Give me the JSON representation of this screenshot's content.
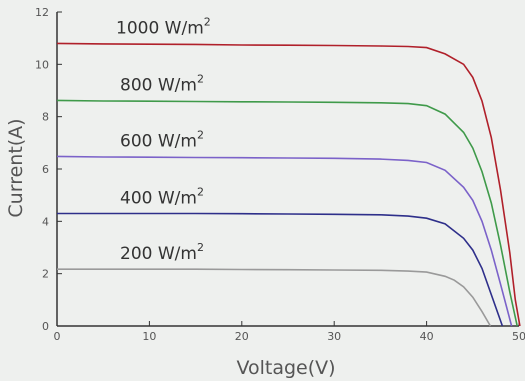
{
  "chart_data": {
    "type": "line",
    "xlabel": "Voltage(V)",
    "ylabel": "Current(A)",
    "xlim": [
      0,
      50
    ],
    "ylim": [
      0,
      12
    ],
    "xticks": [
      "0",
      "10",
      "20",
      "30",
      "40",
      "50"
    ],
    "yticks": [
      "0",
      "2",
      "4",
      "6",
      "8",
      "10",
      "12"
    ],
    "grid": false,
    "legend": "inline labels above curves",
    "series": [
      {
        "name": "1000 W/m2",
        "label_text": "1000 W/m",
        "label_sup": "2",
        "color": "#b0202a",
        "x": [
          0,
          5,
          10,
          15,
          20,
          25,
          30,
          35,
          38,
          40,
          42,
          44,
          45,
          46,
          47,
          48,
          49,
          49.6,
          50.1
        ],
        "y": [
          10.8,
          10.78,
          10.77,
          10.76,
          10.74,
          10.73,
          10.72,
          10.7,
          10.68,
          10.64,
          10.4,
          10.0,
          9.5,
          8.6,
          7.2,
          5.2,
          2.8,
          1.0,
          0
        ]
      },
      {
        "name": "800 W/m2",
        "label_text": "800 W/m",
        "label_sup": "2",
        "color": "#3f9a4a",
        "x": [
          0,
          5,
          10,
          15,
          20,
          25,
          30,
          35,
          38,
          40,
          42,
          44,
          45,
          46,
          47,
          48,
          49,
          49.8
        ],
        "y": [
          8.62,
          8.6,
          8.59,
          8.58,
          8.57,
          8.56,
          8.55,
          8.53,
          8.5,
          8.42,
          8.1,
          7.4,
          6.8,
          5.9,
          4.7,
          3.1,
          1.3,
          0
        ]
      },
      {
        "name": "600 W/m2",
        "label_text": "600 W/m",
        "label_sup": "2",
        "color": "#7b62c9",
        "x": [
          0,
          5,
          10,
          15,
          20,
          25,
          30,
          35,
          38,
          40,
          42,
          44,
          45,
          46,
          47,
          48,
          49.2
        ],
        "y": [
          6.48,
          6.46,
          6.45,
          6.44,
          6.43,
          6.42,
          6.41,
          6.38,
          6.33,
          6.25,
          5.95,
          5.3,
          4.8,
          4.0,
          2.9,
          1.6,
          0
        ]
      },
      {
        "name": "400 W/m2",
        "label_text": "400 W/m",
        "label_sup": "2",
        "color": "#2e2f8a",
        "x": [
          0,
          5,
          10,
          15,
          20,
          25,
          30,
          35,
          38,
          40,
          42,
          44,
          45,
          46,
          47,
          48.2
        ],
        "y": [
          4.3,
          4.3,
          4.3,
          4.3,
          4.29,
          4.28,
          4.27,
          4.25,
          4.2,
          4.12,
          3.9,
          3.35,
          2.9,
          2.2,
          1.2,
          0
        ]
      },
      {
        "name": "200 W/m2",
        "label_text": "200 W/m",
        "label_sup": "2",
        "color": "#9a9a9a",
        "x": [
          0,
          5,
          10,
          15,
          20,
          25,
          30,
          35,
          38,
          40,
          42,
          43,
          44,
          45,
          46,
          46.9
        ],
        "y": [
          2.17,
          2.17,
          2.17,
          2.17,
          2.16,
          2.15,
          2.14,
          2.13,
          2.1,
          2.06,
          1.9,
          1.75,
          1.5,
          1.1,
          0.55,
          0
        ]
      }
    ]
  }
}
